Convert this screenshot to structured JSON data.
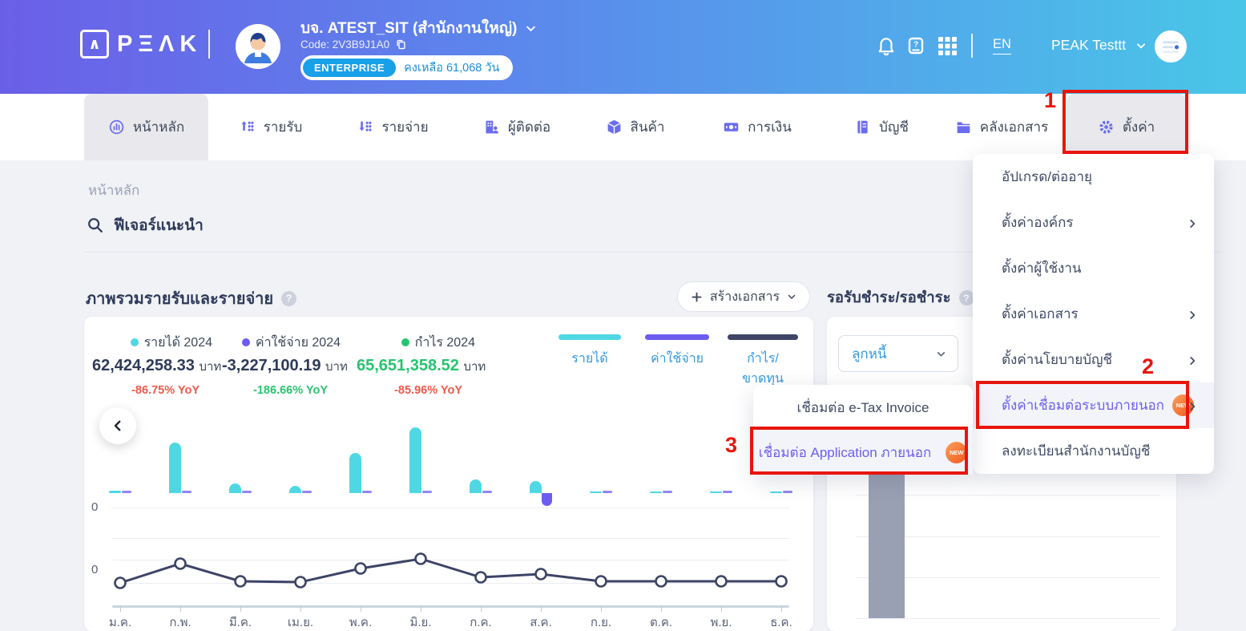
{
  "header": {
    "logo_mark": "∧",
    "logo_text": "PΞΛK",
    "company_name": "บจ. ATEST_SIT (สำนักงานใหญ่)",
    "company_code": "Code: 2V3B9J1A0",
    "plan_badge": "ENTERPRISE",
    "plan_remaining": "คงเหลือ 61,068 วัน",
    "language": "EN",
    "user_name": "PEAK Testtt"
  },
  "nav": {
    "tabs": [
      {
        "label": "หน้าหลัก",
        "icon": "home-chart-icon",
        "active": true
      },
      {
        "label": "รายรับ",
        "icon": "income-icon",
        "active": false
      },
      {
        "label": "รายจ่าย",
        "icon": "expense-icon",
        "active": false
      },
      {
        "label": "ผู้ติดต่อ",
        "icon": "contacts-icon",
        "active": false
      },
      {
        "label": "สินค้า",
        "icon": "product-icon",
        "active": false
      },
      {
        "label": "การเงิน",
        "icon": "finance-icon",
        "active": false
      },
      {
        "label": "บัญชี",
        "icon": "accounting-icon",
        "active": false
      },
      {
        "label": "คลังเอกสาร",
        "icon": "documents-icon",
        "active": false
      },
      {
        "label": "ตั้งค่า",
        "icon": "settings-gear-icon",
        "active": false,
        "highlighted": true
      }
    ]
  },
  "page": {
    "breadcrumb": "หน้าหลัก",
    "search_label": "ฟีเจอร์แนะนำ"
  },
  "overview": {
    "title": "ภาพรวมรายรับและรายจ่าย",
    "create_document_button": "สร้างเอกสาร",
    "stats": [
      {
        "label": "รายได้ 2024",
        "value": "62,424,258.33",
        "unit": "บาท",
        "yoy": "-86.75% YoY",
        "dot_color": "#4fd8e4",
        "value_color": "#2e3a59",
        "yoy_color": "#f0594a"
      },
      {
        "label": "ค่าใช้จ่าย 2024",
        "value": "-3,227,100.19",
        "unit": "บาท",
        "yoy": "-186.66% YoY",
        "dot_color": "#6c5cf0",
        "value_color": "#2e3a59",
        "yoy_color": "#27c46f"
      },
      {
        "label": "กำไร 2024",
        "value": "65,651,358.52",
        "unit": "บาท",
        "yoy": "-85.96% YoY",
        "dot_color": "#27c46f",
        "value_color": "#27c46f",
        "yoy_color": "#f0594a"
      }
    ],
    "legend_toggles": [
      {
        "label": "รายได้",
        "color": "#4fd8e4"
      },
      {
        "label": "ค่าใช้จ่าย",
        "color": "#6c5cf0"
      },
      {
        "label": "กำไร/ขาดทุน",
        "color": "#3d4466"
      }
    ]
  },
  "pending": {
    "title": "รอรับชำระ/รอชำระ",
    "filter_value": "ลูกหนี้"
  },
  "settings_menu": {
    "items": [
      {
        "label": "อัปเกรด/ต่ออายุ",
        "chevron": false,
        "badge": "",
        "highlighted": false
      },
      {
        "label": "ตั้งค่าองค์กร",
        "chevron": true,
        "badge": "",
        "highlighted": false
      },
      {
        "label": "ตั้งค่าผู้ใช้งาน",
        "chevron": false,
        "badge": "",
        "highlighted": false
      },
      {
        "label": "ตั้งค่าเอกสาร",
        "chevron": true,
        "badge": "",
        "highlighted": false
      },
      {
        "label": "ตั้งค่านโยบายบัญชี",
        "chevron": true,
        "badge": "",
        "highlighted": false
      },
      {
        "label": "ตั้งค่าเชื่อมต่อระบบภายนอก",
        "chevron": true,
        "badge": "NEW",
        "highlighted": true
      },
      {
        "label": "ลงทะเบียนสำนักงานบัญชี",
        "chevron": false,
        "badge": "",
        "highlighted": false
      }
    ]
  },
  "connect_submenu": {
    "items": [
      {
        "label": "เชื่อมต่อ e-Tax Invoice",
        "badge": "",
        "highlighted": false
      },
      {
        "label": "เชื่อมต่อ Application ภายนอก",
        "badge": "NEW",
        "highlighted": true
      }
    ]
  },
  "annotations": {
    "step1": "1",
    "step2": "2",
    "step3": "3",
    "color": "#e8150b"
  },
  "chart_data": [
    {
      "id": "income_expense_overview",
      "type": "bar",
      "subtype": "grouped bars with profit line; numeric scale unlabeled (y-axis shows only 0)",
      "title": "ภาพรวมรายรับและรายจ่าย",
      "categories": [
        "ม.ค.",
        "ก.พ.",
        "มี.ค.",
        "เม.ย.",
        "พ.ค.",
        "มิ.ย.",
        "ก.ค.",
        "ส.ค.",
        "ก.ย.",
        "ต.ค.",
        "พ.ย.",
        "ธ.ค."
      ],
      "series": [
        {
          "name": "รายได้",
          "type": "bar",
          "color": "#4fd8e4",
          "values_rel": [
            3,
            63,
            12,
            9,
            50,
            82,
            17,
            15,
            2,
            2,
            2,
            2
          ]
        },
        {
          "name": "ค่าใช้จ่าย",
          "type": "bar",
          "color": "#6c5cf0",
          "values_rel": [
            2,
            2,
            2,
            2,
            2,
            2,
            2,
            -16,
            2,
            2,
            2,
            2
          ]
        },
        {
          "name": "กำไร/ขาดทุน",
          "type": "line",
          "color": "#3d4466",
          "values_rel": [
            -14,
            10,
            -12,
            -13,
            4,
            16,
            -7,
            -3,
            -12,
            -12,
            -12,
            -12
          ]
        }
      ],
      "y_tick_labels": [
        "0",
        "0"
      ],
      "units_note": "values_rel are relative pixel heights read from the screenshot; no numeric axis labels shown",
      "totals_2024": {
        "รายได้": "62,424,258.33",
        "ค่าใช้จ่าย": "-3,227,100.19",
        "กำไร": "65,651,358.52",
        "unit": "บาท"
      },
      "legend_position": "top-right"
    },
    {
      "id": "pending_payments",
      "type": "bar",
      "title": "รอรับชำระ/รอชำระ",
      "filter": "ลูกหนี้",
      "categories": [
        "bar1"
      ],
      "values_rel": [
        212
      ],
      "color": "#9aa0b4",
      "note": "single tall gray bar; chart mostly occluded by open settings dropdown menu"
    }
  ]
}
